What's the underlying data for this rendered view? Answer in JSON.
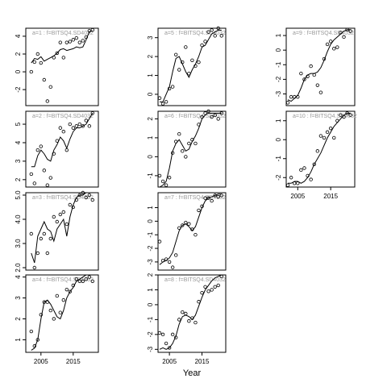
{
  "chart_data": [
    {
      "type": "scatter",
      "title": "a=1 : f=BITSQ4.SD4032",
      "x": [
        2002,
        2003,
        2004,
        2005,
        2006,
        2007,
        2008,
        2009,
        2010,
        2011,
        2012,
        2013,
        2014,
        2015,
        2016,
        2017,
        2018,
        2019,
        2020,
        2021
      ],
      "values": [
        0,
        1.1,
        2,
        1,
        -0.9,
        -3.3,
        -1.7,
        1.6,
        2.1,
        3.3,
        1.6,
        3.3,
        3.4,
        3.6,
        3.8,
        3.3,
        3.5,
        3.9,
        4.6,
        4.7
      ],
      "line_values": [
        1,
        1.5,
        1.4,
        1.7,
        1.2,
        1.4,
        1.6,
        1.8,
        2.1,
        2.5,
        2.6,
        2.4,
        2.5,
        2.6,
        2.8,
        2.7,
        2.8,
        3.6,
        4.5,
        4.6
      ],
      "xlim": [
        2000.3,
        2022.8
      ],
      "ylim": [
        -3.8,
        4.9
      ],
      "yticks": [
        -2,
        0,
        2,
        4
      ],
      "color": "#000000"
    },
    {
      "type": "scatter",
      "title": "a=2 : f=BITSQ4.SD4032",
      "x": [
        2002,
        2003,
        2004,
        2005,
        2006,
        2007,
        2008,
        2009,
        2010,
        2011,
        2012,
        2013,
        2014,
        2015,
        2016,
        2017,
        2018,
        2019,
        2020,
        2021
      ],
      "values": [
        2.3,
        1.8,
        3.6,
        3.8,
        2.5,
        1.7,
        2.1,
        3.4,
        4.1,
        4.8,
        4.6,
        3.6,
        5.0,
        4.8,
        4.9,
        5.0,
        4.9,
        5.2,
        4.9,
        5.6
      ],
      "line_values": [
        2.7,
        2.7,
        3.3,
        3.6,
        3.4,
        3.1,
        3.0,
        3.6,
        3.9,
        4.3,
        4.1,
        3.7,
        4.2,
        4.6,
        4.8,
        4.8,
        4.9,
        5.0,
        5.3,
        5.6
      ],
      "xlim": [
        2000.3,
        2022.8
      ],
      "ylim": [
        1.6,
        5.7
      ],
      "yticks": [
        2,
        3,
        4,
        5
      ],
      "color": "#000000"
    },
    {
      "type": "scatter",
      "title": "a=3 : f=BITSQ4.SD4032",
      "x": [
        2002,
        2003,
        2004,
        2005,
        2006,
        2007,
        2008,
        2009,
        2010,
        2011,
        2012,
        2013,
        2014,
        2015,
        2016,
        2017,
        2018,
        2019,
        2020,
        2021
      ],
      "values": [
        3.4,
        2.0,
        2.6,
        3.2,
        3.4,
        2.6,
        3.2,
        4.1,
        3.9,
        4.2,
        4.3,
        3.8,
        4.6,
        4.5,
        4.8,
        5.0,
        5.1,
        4.9,
        5.0,
        4.8
      ],
      "line_values": [
        2.6,
        2.2,
        3.3,
        3.6,
        3.9,
        3.6,
        3.5,
        3.1,
        3.6,
        3.8,
        4.0,
        3.3,
        4.1,
        4.6,
        4.9,
        5.0,
        5.0,
        5.1,
        5.1,
        5.1
      ],
      "xlim": [
        2000.3,
        2022.8
      ],
      "ylim": [
        1.9,
        5.1
      ],
      "yticks": [
        {
          "value": 2,
          "label": "2.0"
        },
        {
          "value": 3,
          "label": "3.0"
        },
        {
          "value": 4,
          "label": "4.0"
        },
        {
          "value": 5,
          "label": "5.0"
        }
      ],
      "color": "#000000"
    },
    {
      "type": "scatter",
      "title": "a=4 : f=BITSQ4.SD4032",
      "x": [
        2002,
        2003,
        2004,
        2005,
        2006,
        2007,
        2008,
        2009,
        2010,
        2011,
        2012,
        2013,
        2014,
        2015,
        2016,
        2017,
        2018,
        2019,
        2020,
        2021
      ],
      "values": [
        1.4,
        0.7,
        1.0,
        2.2,
        2.8,
        2.8,
        2.4,
        2.0,
        3.1,
        2.3,
        2.9,
        3.4,
        3.3,
        3.6,
        3.9,
        3.8,
        3.8,
        3.9,
        4.0,
        3.8
      ],
      "line_values": [
        0.5,
        0.6,
        1.0,
        2.0,
        2.8,
        2.9,
        2.7,
        2.4,
        2.1,
        2.0,
        2.4,
        3.0,
        3.3,
        3.5,
        3.8,
        3.9,
        4.0,
        4.1,
        4.1,
        4.1
      ],
      "xlim": [
        2000.3,
        2022.8
      ],
      "ylim": [
        0.4,
        4.1
      ],
      "yticks": [
        1,
        2,
        3,
        4
      ],
      "xticks": [
        2005,
        2015
      ],
      "color": "#000000"
    },
    {
      "type": "scatter",
      "title": "a=5 : f=BITSQ4.SD4032",
      "x": [
        2002,
        2003,
        2004,
        2005,
        2006,
        2007,
        2008,
        2009,
        2010,
        2011,
        2012,
        2013,
        2014,
        2015,
        2016,
        2017,
        2018,
        2019,
        2020,
        2021
      ],
      "values": [
        -0.2,
        -0.5,
        -0.4,
        0.3,
        0.4,
        2.1,
        1.3,
        1.7,
        2.5,
        1.1,
        1.8,
        1.5,
        1.7,
        2.6,
        2.8,
        3.3,
        3.4,
        3.1,
        3.5,
        3.1
      ],
      "line_values": [
        -0.4,
        -0.4,
        0,
        0.4,
        1.2,
        1.9,
        2.0,
        1.6,
        1.2,
        0.9,
        1.3,
        1.6,
        2.0,
        2.5,
        2.6,
        2.9,
        3.2,
        3.3,
        3.4,
        3.4
      ],
      "xlim": [
        2001.5,
        2022.3
      ],
      "ylim": [
        -0.6,
        3.5
      ],
      "yticks": [
        0,
        1,
        2,
        3
      ],
      "color": "#000000"
    },
    {
      "type": "scatter",
      "title": "a=6 : f=BITSQ4.SD4032",
      "x": [
        2002,
        2003,
        2004,
        2005,
        2006,
        2007,
        2008,
        2009,
        2010,
        2011,
        2012,
        2013,
        2014,
        2015,
        2016,
        2017,
        2018,
        2019,
        2020,
        2021
      ],
      "values": [
        -1.0,
        -1.3,
        -1.5,
        -1.1,
        0.2,
        0.8,
        1.2,
        0.3,
        0,
        0.7,
        0.9,
        0.7,
        1.7,
        2.1,
        2.3,
        2.4,
        2.1,
        2.2,
        2.0,
        2.3
      ],
      "line_values": [
        -1.6,
        -1.5,
        -1.3,
        -0.6,
        0.3,
        0.7,
        0.9,
        0.6,
        0.3,
        0.4,
        0.8,
        1.1,
        1.5,
        2.0,
        2.2,
        2.3,
        2.3,
        2.3,
        2.3,
        2.3
      ],
      "xlim": [
        2001.5,
        2022.3
      ],
      "ylim": [
        -1.6,
        2.4
      ],
      "yticks": [
        -1,
        0,
        1,
        2
      ],
      "color": "#000000"
    },
    {
      "type": "scatter",
      "title": "a=7 : f=BITSQ4.SD4032",
      "x": [
        2002,
        2003,
        2004,
        2005,
        2006,
        2007,
        2008,
        2009,
        2010,
        2011,
        2012,
        2013,
        2014,
        2015,
        2016,
        2017,
        2018,
        2019,
        2020,
        2021
      ],
      "values": [
        -1.5,
        -2.9,
        -2.8,
        -3.0,
        -3.4,
        -2.5,
        -0.5,
        -0.3,
        -0.1,
        -0.2,
        -0.6,
        -1.0,
        0.8,
        1.1,
        1.7,
        1.7,
        1.5,
        1.9,
        1.8,
        1.9
      ],
      "line_values": [
        -3.2,
        -3.0,
        -2.9,
        -2.7,
        -2.3,
        -1.5,
        -0.7,
        -0.3,
        -0.2,
        -0.4,
        -0.7,
        -0.4,
        0.3,
        1.0,
        1.5,
        1.7,
        1.8,
        1.9,
        2.0,
        2.0
      ],
      "xlim": [
        2001.5,
        2022.3
      ],
      "ylim": [
        -3.6,
        2.1
      ],
      "yticks": [
        -3,
        -2,
        -1,
        0,
        1
      ],
      "color": "#000000"
    },
    {
      "type": "scatter",
      "title": "a=8 : f=BITSQ4.SD4032",
      "x": [
        2002,
        2003,
        2004,
        2005,
        2006,
        2007,
        2008,
        2009,
        2010,
        2011,
        2012,
        2013,
        2014,
        2015,
        2016,
        2017,
        2018,
        2019,
        2020,
        2021
      ],
      "values": [
        -1.9,
        -2.0,
        -2.6,
        -2.9,
        -2.0,
        -2.2,
        -1.0,
        -0.5,
        -0.6,
        -1.1,
        -0.9,
        -1.2,
        0.2,
        0.8,
        1.2,
        0.9,
        1.0,
        1.2,
        1.3,
        1.9
      ],
      "line_values": [
        -3.0,
        -2.9,
        -3.0,
        -2.9,
        -2.6,
        -2.1,
        -1.3,
        -0.8,
        -0.7,
        -0.8,
        -1.0,
        -0.7,
        -0.1,
        0.5,
        1.0,
        1.3,
        1.6,
        1.8,
        1.9,
        2.0
      ],
      "xlim": [
        2001.5,
        2022.3
      ],
      "ylim": [
        -3.2,
        2
      ],
      "yticks": [
        -3,
        -2,
        -1,
        0,
        1,
        2
      ],
      "xticks": [
        2005,
        2015
      ],
      "xlabel": "Year",
      "color": "#000000"
    },
    {
      "type": "scatter",
      "title": "a=9 : f=BITSQ4.SD4032",
      "x": [
        2002,
        2003,
        2004,
        2005,
        2006,
        2007,
        2008,
        2009,
        2010,
        2011,
        2012,
        2013,
        2014,
        2015,
        2016,
        2017,
        2018,
        2019,
        2020,
        2021
      ],
      "values": [
        -3.6,
        -3.2,
        -3.2,
        -3.2,
        -1.6,
        -2.0,
        -1.8,
        -1.1,
        -1.7,
        -2.4,
        -2.9,
        -0.6,
        0.4,
        0.6,
        0.1,
        0.2,
        1.2,
        0.9,
        1.4,
        1.3
      ],
      "line_values": [
        -3.4,
        -3.5,
        -3.3,
        -3.1,
        -2.6,
        -2.0,
        -1.7,
        -1.6,
        -1.6,
        -1.5,
        -1.2,
        -0.7,
        -0.1,
        0.4,
        0.7,
        0.9,
        1.1,
        1.3,
        1.4,
        1.4
      ],
      "xlim": [
        2001.5,
        2022.3
      ],
      "ylim": [
        -3.8,
        1.5
      ],
      "yticks": [
        -3,
        -2,
        -1,
        0,
        1
      ],
      "color": "#000000"
    },
    {
      "type": "scatter",
      "title": "a=10 : f=BITSQ4.SD4032",
      "x": [
        2002,
        2003,
        2004,
        2005,
        2006,
        2007,
        2008,
        2009,
        2010,
        2011,
        2012,
        2013,
        2014,
        2015,
        2016,
        2017,
        2018,
        2019,
        2020,
        2021
      ],
      "values": [
        -2.4,
        -2.0,
        -2.3,
        -2.3,
        -1.6,
        -1.5,
        -1.9,
        -2.1,
        -1.3,
        -0.6,
        0.2,
        0.1,
        0.4,
        0.6,
        0.1,
        1.0,
        1.3,
        1.2,
        1.4,
        1.3
      ],
      "line_values": [
        -2.3,
        -2.3,
        -2.2,
        -2.2,
        -2.3,
        -2.2,
        -2.0,
        -1.7,
        -1.3,
        -1.0,
        -0.7,
        -0.3,
        0.1,
        0.4,
        0.7,
        0.9,
        1.1,
        1.3,
        1.4,
        1.4
      ],
      "xlim": [
        2001.5,
        2022.3
      ],
      "ylim": [
        -2.5,
        1.5
      ],
      "yticks": [
        -2,
        -1,
        0,
        1
      ],
      "xticks": [
        2005,
        2015
      ],
      "color": "#000000"
    }
  ]
}
